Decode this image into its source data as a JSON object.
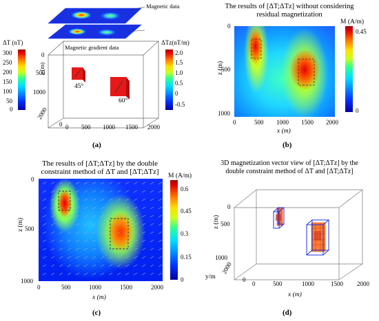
{
  "panels": {
    "a": {
      "label": "(a)",
      "magnetic_data_label": "Magnetic data",
      "gradient_label": "Magnetic gradient data",
      "cbar1_title": "ΔT (nT)",
      "cbar1_ticks": [
        "300",
        "250",
        "200",
        "150",
        "100",
        "50",
        "0"
      ],
      "cbar2_title": "ΔTz(nT/m)",
      "cbar2_ticks": [
        "2.0",
        "1.5",
        "1.0",
        "0.5",
        "0",
        "-0.5"
      ],
      "z_label": "z (m)",
      "z_ticks": [
        "0",
        "500",
        "1000"
      ],
      "x_ticks": [
        "0",
        "500",
        "1000",
        "1500",
        "2000"
      ],
      "y_ticks": [
        "2000",
        "0"
      ],
      "angle1": "45°",
      "angle2": "60°"
    },
    "b": {
      "label": "(b)",
      "title_line1": "The results of [ΔT;ΔTz] without considering",
      "title_line2": "residual magnetization",
      "cbar_title": "M (A/m)",
      "cbar_ticks": [
        "0.45",
        "0"
      ],
      "z_label": "z (m)",
      "z_ticks": [
        "0",
        "500",
        "1000"
      ],
      "x_label": "x (m)",
      "x_ticks": [
        "0",
        "500",
        "1000",
        "1500",
        "2000"
      ]
    },
    "c": {
      "label": "(c)",
      "title_line1": "The results of  [ΔT;ΔTz]  by the double",
      "title_line2": "constraint method of ΔT and [ΔT;ΔTz]",
      "cbar_title": "M (A/m)",
      "cbar_ticks": [
        "0.6",
        "0.45",
        "0.3",
        "0.15",
        "0"
      ],
      "z_label": "z (m)",
      "z_ticks": [
        "0",
        "500",
        "1000"
      ],
      "x_label": "x (m)",
      "x_ticks": [
        "0",
        "500",
        "1000",
        "1500",
        "2000"
      ]
    },
    "d": {
      "label": "(d)",
      "title_line1": "3D magnetization vector view of [ΔT;ΔTz]  by the",
      "title_line2": "double constraint method of ΔT and [ΔT;ΔTz]",
      "z_label": "z (m)",
      "z_ticks": [
        "0",
        "500",
        "1000"
      ],
      "y_label": "y/m",
      "y_ticks": [
        "2000",
        "0"
      ],
      "x_label": "x (m)",
      "x_ticks": [
        "0",
        "500",
        "1000",
        "1500",
        "2000"
      ]
    }
  }
}
